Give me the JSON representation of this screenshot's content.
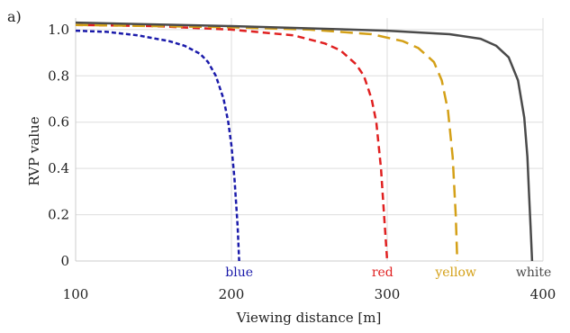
{
  "panel_label": "a)",
  "chart_data": {
    "type": "line",
    "title": "",
    "xlabel": "Viewing distance [m]",
    "ylabel": "RVP value",
    "xlim": [
      100,
      400
    ],
    "ylim": [
      0,
      1.05
    ],
    "xticks": [
      100,
      200,
      300,
      400
    ],
    "xtick_labels": [
      "100",
      "200",
      "300",
      "400"
    ],
    "yticks": [
      0,
      0.2,
      0.4,
      0.6,
      0.8,
      1.0
    ],
    "ytick_labels": [
      "0",
      "0.2",
      "0.4",
      "0.6",
      "0.8",
      "1.0"
    ],
    "grid": true,
    "series": [
      {
        "name": "blue",
        "color": "#1a1aaa",
        "dash": "short-dash",
        "label_x": 205,
        "x": [
          100,
          120,
          140,
          160,
          170,
          180,
          185,
          190,
          195,
          198,
          200,
          202,
          204,
          205
        ],
        "y": [
          0.995,
          0.99,
          0.975,
          0.95,
          0.93,
          0.895,
          0.86,
          0.8,
          0.7,
          0.6,
          0.5,
          0.35,
          0.15,
          0.0
        ]
      },
      {
        "name": "red",
        "color": "#e02020",
        "dash": "medium-dash",
        "label_x": 297,
        "x": [
          100,
          150,
          200,
          240,
          260,
          270,
          280,
          285,
          290,
          293,
          296,
          298,
          300
        ],
        "y": [
          1.02,
          1.015,
          1.0,
          0.975,
          0.94,
          0.91,
          0.85,
          0.8,
          0.7,
          0.6,
          0.4,
          0.2,
          0.0
        ]
      },
      {
        "name": "yellow",
        "color": "#d4a017",
        "dash": "long-dash",
        "label_x": 344,
        "x": [
          100,
          150,
          200,
          250,
          290,
          310,
          320,
          330,
          335,
          339,
          342,
          344,
          345
        ],
        "y": [
          1.02,
          1.015,
          1.01,
          1.0,
          0.98,
          0.95,
          0.92,
          0.86,
          0.78,
          0.65,
          0.45,
          0.2,
          0.0
        ]
      },
      {
        "name": "white",
        "color": "#4a4a4a",
        "dash": "solid",
        "label_x": 394,
        "x": [
          100,
          200,
          300,
          340,
          360,
          370,
          378,
          384,
          388,
          390,
          391,
          392,
          393
        ],
        "y": [
          1.03,
          1.015,
          0.995,
          0.98,
          0.96,
          0.93,
          0.88,
          0.78,
          0.62,
          0.45,
          0.3,
          0.15,
          0.0
        ]
      }
    ]
  }
}
